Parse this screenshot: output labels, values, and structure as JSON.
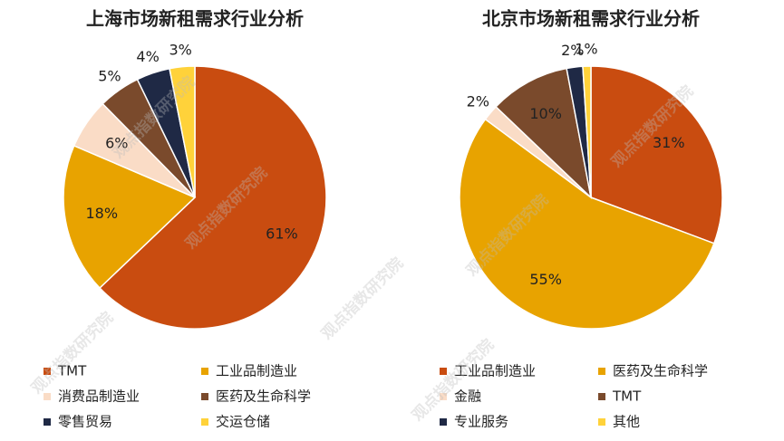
{
  "watermark": "观点指数研究院",
  "chart_data": [
    {
      "type": "pie",
      "title": "上海市场新租需求行业分析",
      "categories": [
        "TMT",
        "工业品制造业",
        "消费品制造业",
        "医药及生命科学",
        "零售贸易",
        "交运仓储"
      ],
      "values": [
        61,
        18,
        6,
        5,
        4,
        3
      ],
      "value_labels": [
        "61%",
        "18%",
        "6%",
        "5%",
        "4%",
        "3%"
      ],
      "colors": [
        "#c94c10",
        "#e8a300",
        "#fadcc6",
        "#7a4a2c",
        "#1f2945",
        "#ffd23a"
      ]
    },
    {
      "type": "pie",
      "title": "北京市场新租需求行业分析",
      "categories": [
        "工业品制造业",
        "医药及生命科学",
        "金融",
        "TMT",
        "专业服务",
        "其他"
      ],
      "values": [
        31,
        55,
        2,
        10,
        2,
        1
      ],
      "value_labels": [
        "31%",
        "55%",
        "2%",
        "10%",
        "2%",
        "1%"
      ],
      "colors": [
        "#c94c10",
        "#e8a300",
        "#fadcc6",
        "#7a4a2c",
        "#1f2945",
        "#ffd23a"
      ]
    }
  ]
}
